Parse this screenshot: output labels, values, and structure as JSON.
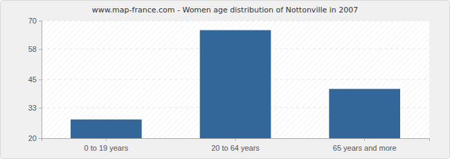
{
  "chart_data": {
    "type": "bar",
    "title": "www.map-france.com - Women age distribution of Nottonville in 2007",
    "categories": [
      "0 to 19 years",
      "20 to 64 years",
      "65 years and more"
    ],
    "values": [
      28,
      66,
      41
    ],
    "color": "#336699",
    "ylim": [
      20,
      70
    ],
    "yticks": [
      20,
      33,
      45,
      58,
      70
    ],
    "grid": true
  }
}
